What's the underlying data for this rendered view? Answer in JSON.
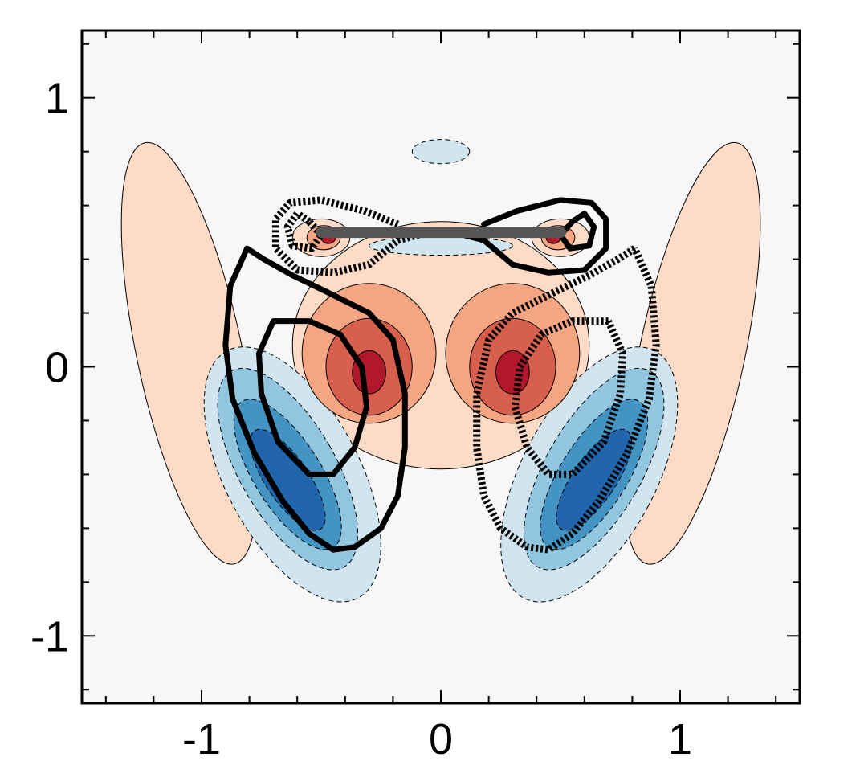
{
  "chart_data": {
    "type": "heatmap",
    "title": "",
    "xlabel": "",
    "ylabel": "",
    "xlim": [
      -1.5,
      1.5
    ],
    "ylim": [
      -1.25,
      1.25
    ],
    "x_ticks": [
      -1,
      0,
      1
    ],
    "y_ticks": [
      -1,
      0,
      1
    ],
    "x_tick_labels": [
      "-1",
      "0",
      "1"
    ],
    "y_tick_labels": [
      "-1",
      "0",
      "1"
    ],
    "grid": false,
    "legend": "none",
    "colors": {
      "background": "#f7f7f7",
      "positive": [
        "#fddbc7",
        "#f4a582",
        "#d6604d",
        "#b2182b"
      ],
      "negative": [
        "#d1e5f0",
        "#92c5de",
        "#4393c3",
        "#2166ac"
      ],
      "plate": "#555555",
      "overlay": "#000000"
    },
    "plate": {
      "x": [
        -0.5,
        0.5
      ],
      "y": 0.5
    },
    "filled_regions": [
      {
        "name": "outer-lobe-left",
        "sign": "positive",
        "level": 1,
        "cx": -1.05,
        "cy": 0.05,
        "rx": 0.22,
        "ry": 0.8,
        "rot": -12
      },
      {
        "name": "outer-lobe-right",
        "sign": "positive",
        "level": 1,
        "cx": 1.05,
        "cy": 0.05,
        "rx": 0.22,
        "ry": 0.8,
        "rot": 12
      },
      {
        "name": "top-small-negative",
        "sign": "negative",
        "level": 1,
        "cx": 0.0,
        "cy": 0.8,
        "rx": 0.12,
        "ry": 0.045,
        "rot": 0
      },
      {
        "name": "central-positive",
        "sign": "positive",
        "level": 1,
        "cx": 0.0,
        "cy": 0.08,
        "rx": 0.62,
        "ry": 0.46,
        "rot": 0
      },
      {
        "name": "central-positive-l2-left",
        "sign": "positive",
        "level": 2,
        "cx": -0.3,
        "cy": 0.05,
        "rx": 0.28,
        "ry": 0.26,
        "rot": 0
      },
      {
        "name": "central-positive-l2-right",
        "sign": "positive",
        "level": 2,
        "cx": 0.3,
        "cy": 0.05,
        "rx": 0.28,
        "ry": 0.26,
        "rot": 0
      },
      {
        "name": "central-positive-l3-left",
        "sign": "positive",
        "level": 3,
        "cx": -0.3,
        "cy": 0.0,
        "rx": 0.18,
        "ry": 0.18,
        "rot": 0
      },
      {
        "name": "central-positive-l3-right",
        "sign": "positive",
        "level": 3,
        "cx": 0.3,
        "cy": 0.0,
        "rx": 0.18,
        "ry": 0.18,
        "rot": 0
      },
      {
        "name": "central-positive-l4-left",
        "sign": "positive",
        "level": 4,
        "cx": -0.3,
        "cy": -0.02,
        "rx": 0.07,
        "ry": 0.08,
        "rot": 0
      },
      {
        "name": "central-positive-l4-right",
        "sign": "positive",
        "level": 4,
        "cx": 0.3,
        "cy": -0.02,
        "rx": 0.07,
        "ry": 0.08,
        "rot": 0
      },
      {
        "name": "lower-negative-left-l1",
        "sign": "negative",
        "level": 1,
        "cx": -0.62,
        "cy": -0.4,
        "rx": 0.28,
        "ry": 0.52,
        "rot": -28
      },
      {
        "name": "lower-negative-right-l1",
        "sign": "negative",
        "level": 1,
        "cx": 0.62,
        "cy": -0.4,
        "rx": 0.28,
        "ry": 0.52,
        "rot": 28
      },
      {
        "name": "lower-negative-left-l2",
        "sign": "negative",
        "level": 2,
        "cx": -0.64,
        "cy": -0.38,
        "rx": 0.2,
        "ry": 0.42,
        "rot": -30
      },
      {
        "name": "lower-negative-right-l2",
        "sign": "negative",
        "level": 2,
        "cx": 0.64,
        "cy": -0.38,
        "rx": 0.2,
        "ry": 0.42,
        "rot": 30
      },
      {
        "name": "lower-negative-left-l3",
        "sign": "negative",
        "level": 3,
        "cx": -0.64,
        "cy": -0.4,
        "rx": 0.14,
        "ry": 0.32,
        "rot": -32
      },
      {
        "name": "lower-negative-right-l3",
        "sign": "negative",
        "level": 3,
        "cx": 0.64,
        "cy": -0.4,
        "rx": 0.14,
        "ry": 0.32,
        "rot": 32
      },
      {
        "name": "lower-negative-left-l4",
        "sign": "negative",
        "level": 4,
        "cx": -0.64,
        "cy": -0.42,
        "rx": 0.09,
        "ry": 0.22,
        "rot": -34
      },
      {
        "name": "lower-negative-right-l4",
        "sign": "negative",
        "level": 4,
        "cx": 0.64,
        "cy": -0.42,
        "rx": 0.09,
        "ry": 0.22,
        "rot": 34
      },
      {
        "name": "plate-positive-left-l1",
        "sign": "positive",
        "level": 1,
        "cx": -0.5,
        "cy": 0.48,
        "rx": 0.12,
        "ry": 0.07,
        "rot": 0
      },
      {
        "name": "plate-positive-right-l1",
        "sign": "positive",
        "level": 1,
        "cx": 0.5,
        "cy": 0.48,
        "rx": 0.12,
        "ry": 0.07,
        "rot": 0
      },
      {
        "name": "plate-positive-left-l2",
        "sign": "positive",
        "level": 2,
        "cx": -0.49,
        "cy": 0.48,
        "rx": 0.07,
        "ry": 0.045,
        "rot": 0
      },
      {
        "name": "plate-positive-right-l2",
        "sign": "positive",
        "level": 2,
        "cx": 0.49,
        "cy": 0.48,
        "rx": 0.07,
        "ry": 0.045,
        "rot": 0
      },
      {
        "name": "plate-positive-left-l4",
        "sign": "positive",
        "level": 4,
        "cx": -0.47,
        "cy": 0.48,
        "rx": 0.03,
        "ry": 0.022,
        "rot": 0
      },
      {
        "name": "plate-positive-right-l4",
        "sign": "positive",
        "level": 4,
        "cx": 0.47,
        "cy": 0.48,
        "rx": 0.03,
        "ry": 0.022,
        "rot": 0
      },
      {
        "name": "under-plate-negative",
        "sign": "negative",
        "level": 1,
        "cx": 0.0,
        "cy": 0.45,
        "rx": 0.3,
        "ry": 0.035,
        "rot": 0
      }
    ],
    "overlay_curves": [
      {
        "name": "left-solid-outer",
        "style": "solid",
        "points": [
          [
            -0.81,
            0.44
          ],
          [
            -0.74,
            0.4
          ],
          [
            -0.62,
            0.34
          ],
          [
            -0.48,
            0.28
          ],
          [
            -0.3,
            0.2
          ],
          [
            -0.2,
            0.1
          ],
          [
            -0.15,
            -0.1
          ],
          [
            -0.15,
            -0.3
          ],
          [
            -0.18,
            -0.48
          ],
          [
            -0.25,
            -0.6
          ],
          [
            -0.36,
            -0.67
          ],
          [
            -0.45,
            -0.68
          ],
          [
            -0.55,
            -0.62
          ],
          [
            -0.66,
            -0.5
          ],
          [
            -0.78,
            -0.32
          ],
          [
            -0.87,
            -0.12
          ],
          [
            -0.9,
            0.08
          ],
          [
            -0.88,
            0.3
          ],
          [
            -0.81,
            0.44
          ]
        ]
      },
      {
        "name": "left-solid-inner",
        "style": "solid",
        "points": [
          [
            -0.7,
            0.17
          ],
          [
            -0.55,
            0.17
          ],
          [
            -0.42,
            0.12
          ],
          [
            -0.33,
            0.0
          ],
          [
            -0.31,
            -0.15
          ],
          [
            -0.36,
            -0.3
          ],
          [
            -0.45,
            -0.4
          ],
          [
            -0.55,
            -0.4
          ],
          [
            -0.68,
            -0.28
          ],
          [
            -0.75,
            -0.1
          ],
          [
            -0.76,
            0.05
          ],
          [
            -0.7,
            0.17
          ]
        ]
      },
      {
        "name": "right-dotted-outer",
        "style": "dotted",
        "points": [
          [
            0.81,
            0.44
          ],
          [
            0.74,
            0.4
          ],
          [
            0.62,
            0.34
          ],
          [
            0.48,
            0.28
          ],
          [
            0.3,
            0.2
          ],
          [
            0.2,
            0.1
          ],
          [
            0.15,
            -0.1
          ],
          [
            0.15,
            -0.3
          ],
          [
            0.18,
            -0.48
          ],
          [
            0.25,
            -0.6
          ],
          [
            0.36,
            -0.67
          ],
          [
            0.45,
            -0.68
          ],
          [
            0.55,
            -0.62
          ],
          [
            0.66,
            -0.5
          ],
          [
            0.78,
            -0.32
          ],
          [
            0.87,
            -0.12
          ],
          [
            0.9,
            0.08
          ],
          [
            0.88,
            0.3
          ],
          [
            0.81,
            0.44
          ]
        ]
      },
      {
        "name": "right-dotted-inner",
        "style": "dotted",
        "points": [
          [
            0.7,
            0.17
          ],
          [
            0.55,
            0.17
          ],
          [
            0.42,
            0.12
          ],
          [
            0.33,
            0.0
          ],
          [
            0.31,
            -0.15
          ],
          [
            0.36,
            -0.3
          ],
          [
            0.45,
            -0.4
          ],
          [
            0.55,
            -0.4
          ],
          [
            0.68,
            -0.28
          ],
          [
            0.75,
            -0.1
          ],
          [
            0.76,
            0.05
          ],
          [
            0.7,
            0.17
          ]
        ]
      },
      {
        "name": "plate-right-solid-outer",
        "style": "solid",
        "points": [
          [
            0.18,
            0.53
          ],
          [
            0.32,
            0.58
          ],
          [
            0.5,
            0.62
          ],
          [
            0.63,
            0.61
          ],
          [
            0.69,
            0.55
          ],
          [
            0.69,
            0.44
          ],
          [
            0.6,
            0.36
          ],
          [
            0.45,
            0.35
          ],
          [
            0.3,
            0.38
          ],
          [
            0.18,
            0.47
          ],
          [
            0.05,
            0.5
          ]
        ]
      },
      {
        "name": "plate-right-solid-inner",
        "style": "solid",
        "points": [
          [
            0.55,
            0.54
          ],
          [
            0.6,
            0.57
          ],
          [
            0.64,
            0.52
          ],
          [
            0.62,
            0.45
          ],
          [
            0.54,
            0.44
          ],
          [
            0.5,
            0.49
          ],
          [
            0.55,
            0.54
          ]
        ]
      },
      {
        "name": "plate-left-dotted-outer",
        "style": "dotted",
        "points": [
          [
            -0.18,
            0.53
          ],
          [
            -0.32,
            0.58
          ],
          [
            -0.5,
            0.62
          ],
          [
            -0.63,
            0.61
          ],
          [
            -0.69,
            0.55
          ],
          [
            -0.69,
            0.44
          ],
          [
            -0.6,
            0.36
          ],
          [
            -0.45,
            0.35
          ],
          [
            -0.3,
            0.38
          ],
          [
            -0.18,
            0.47
          ],
          [
            -0.05,
            0.5
          ]
        ]
      },
      {
        "name": "plate-left-dotted-inner",
        "style": "dotted",
        "points": [
          [
            -0.55,
            0.54
          ],
          [
            -0.6,
            0.57
          ],
          [
            -0.64,
            0.52
          ],
          [
            -0.62,
            0.45
          ],
          [
            -0.54,
            0.44
          ],
          [
            -0.5,
            0.49
          ],
          [
            -0.55,
            0.54
          ]
        ]
      }
    ]
  }
}
